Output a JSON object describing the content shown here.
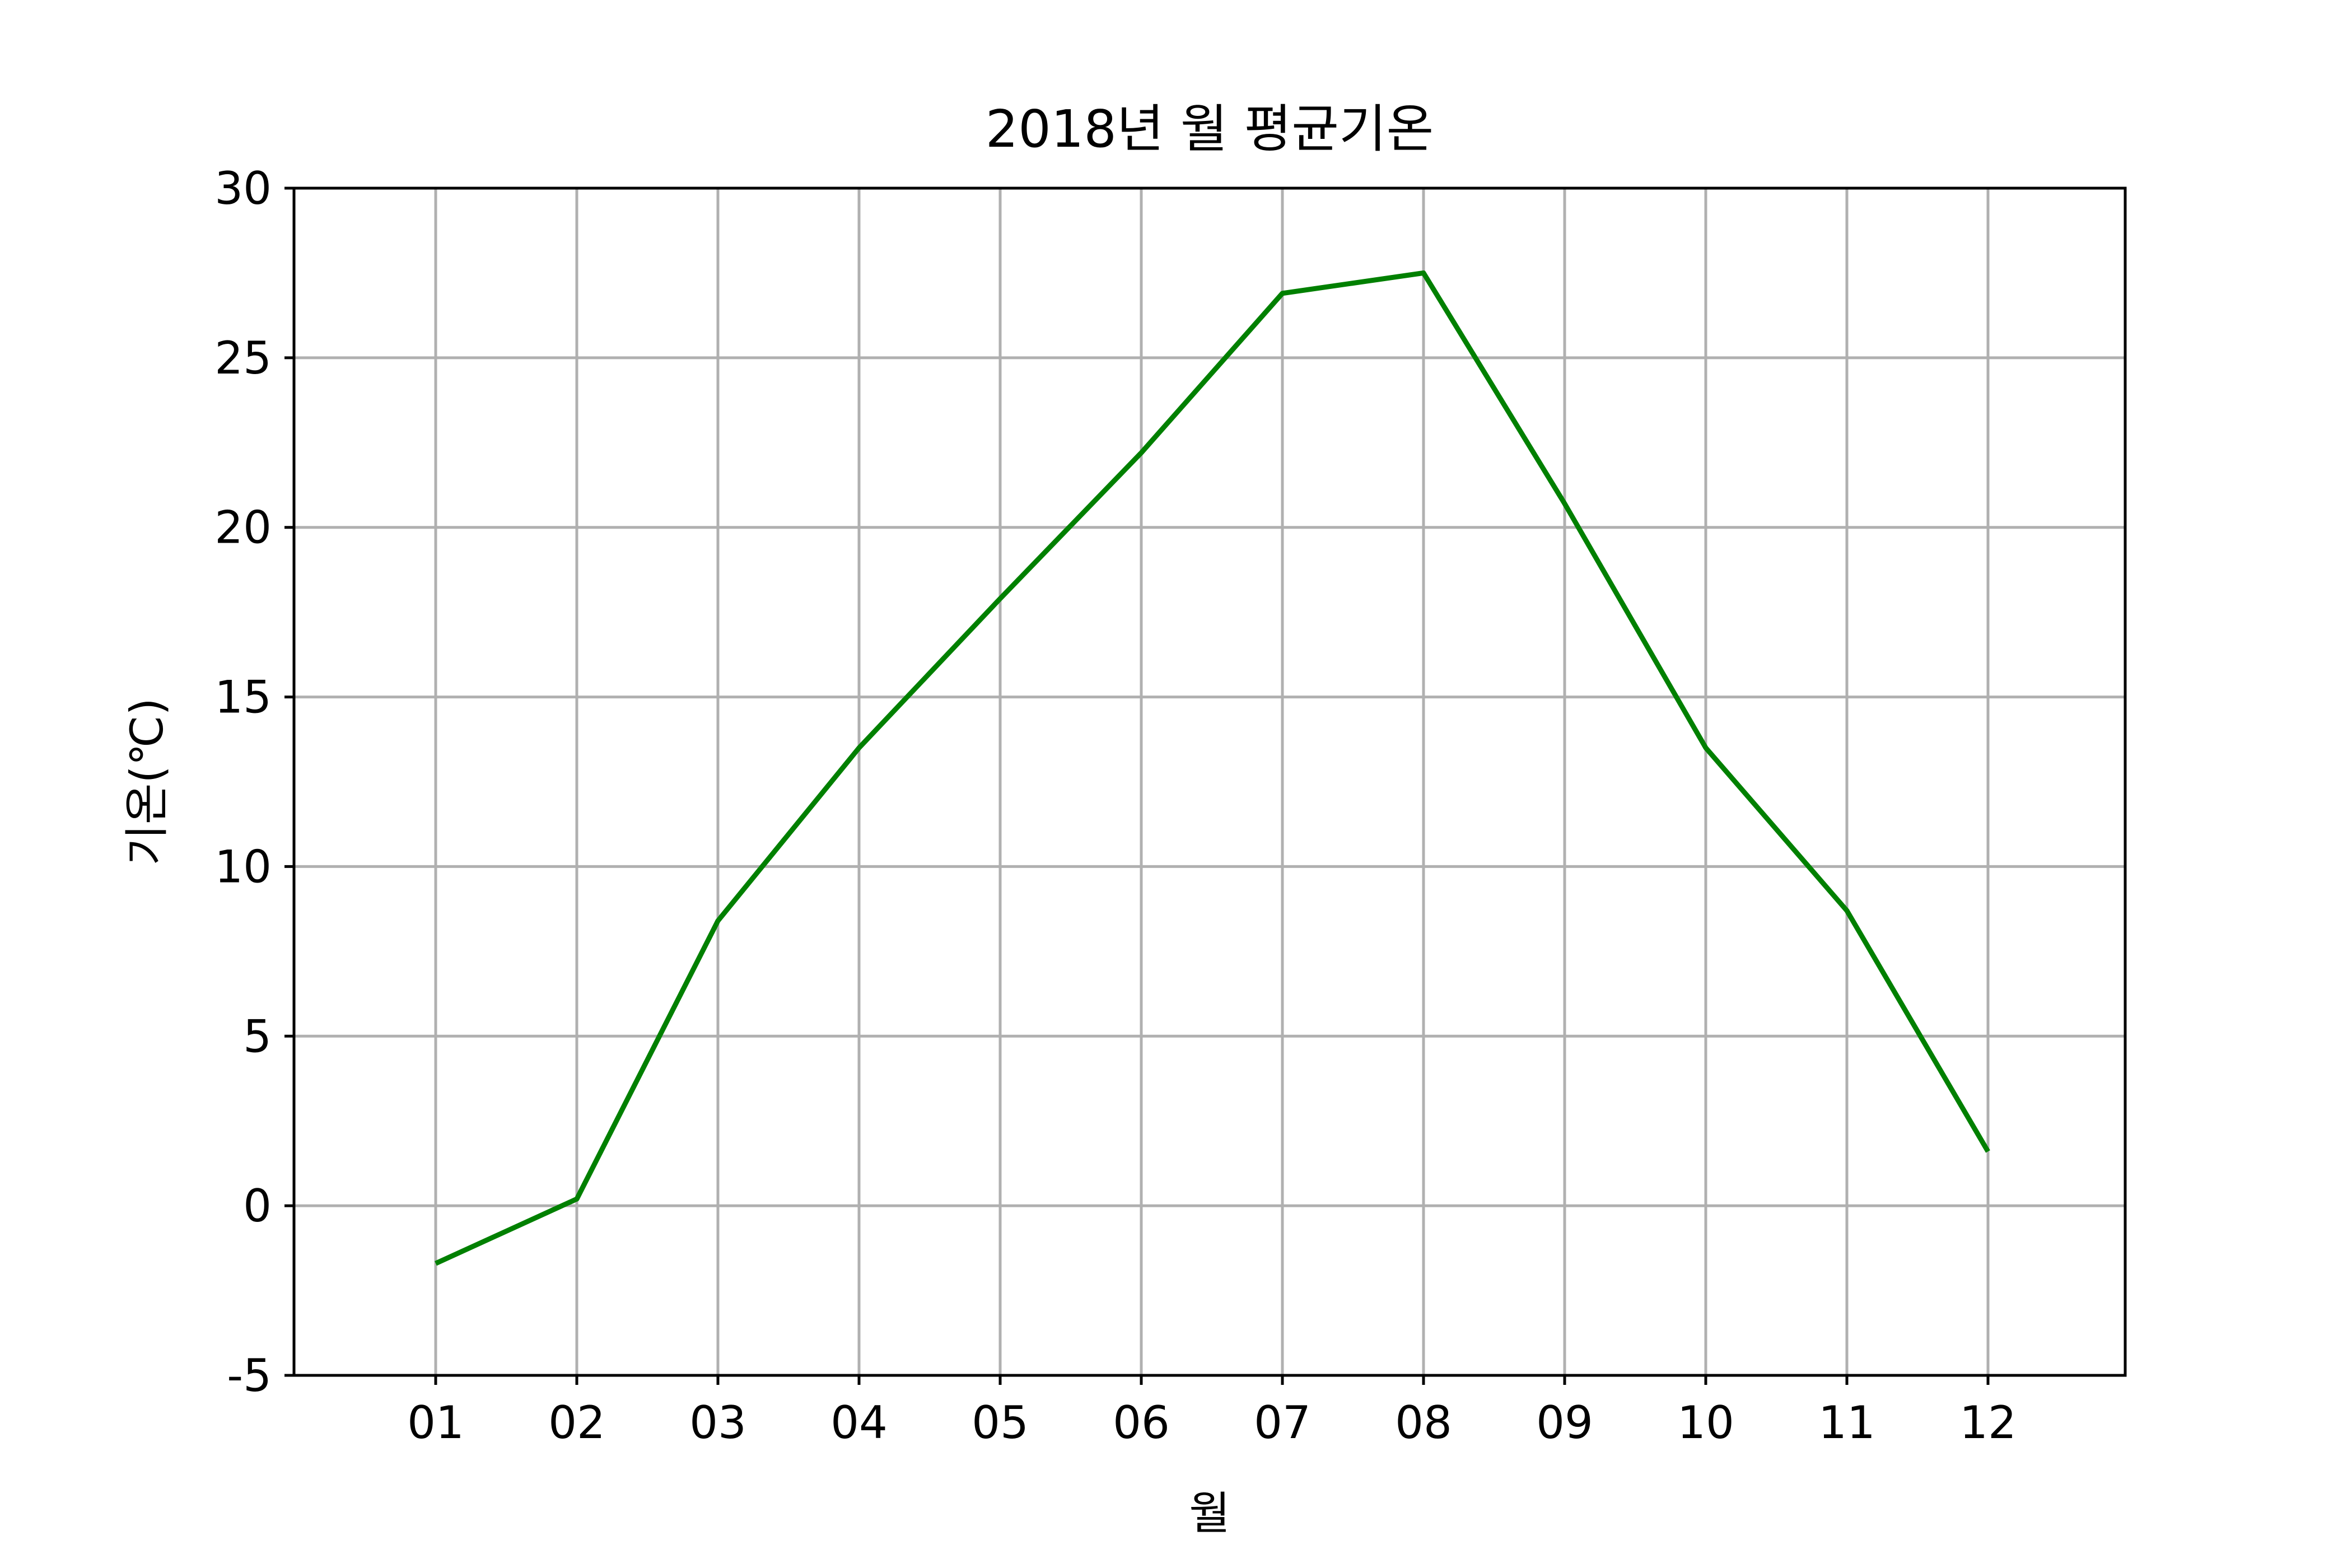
{
  "chart_data": {
    "type": "line",
    "title": "2018년 월 평균기온",
    "xlabel": "월",
    "ylabel": "기온(℃)",
    "categories": [
      "01",
      "02",
      "03",
      "04",
      "05",
      "06",
      "07",
      "08",
      "09",
      "10",
      "11",
      "12"
    ],
    "series": [
      {
        "values": [
          -1.7,
          0.2,
          8.4,
          13.5,
          17.9,
          22.2,
          26.9,
          27.5,
          20.7,
          13.5,
          8.7,
          1.6
        ]
      }
    ],
    "ylim": [
      -5,
      30
    ],
    "yticks": [
      -5,
      0,
      5,
      10,
      15,
      20,
      25,
      30
    ],
    "grid": true,
    "line_color": "#008000",
    "grid_color": "#b0b0b0"
  }
}
